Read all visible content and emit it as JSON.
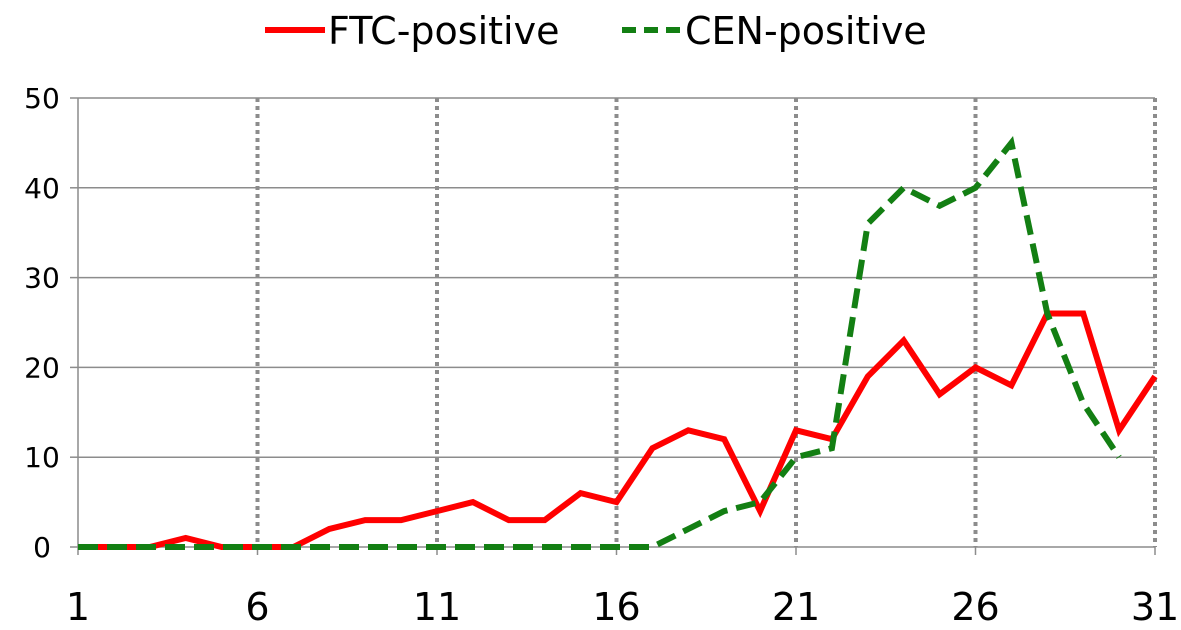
{
  "chart_data": {
    "type": "line",
    "x": [
      1,
      2,
      3,
      4,
      5,
      6,
      7,
      8,
      9,
      10,
      11,
      12,
      13,
      14,
      15,
      16,
      17,
      18,
      19,
      20,
      21,
      22,
      23,
      24,
      25,
      26,
      27,
      28,
      29,
      30,
      31
    ],
    "series": [
      {
        "name": "FTC-positive",
        "color": "#ff0000",
        "dash": "solid",
        "values": [
          0,
          0,
          0,
          1,
          0,
          0,
          0,
          2,
          3,
          3,
          4,
          5,
          3,
          3,
          6,
          5,
          11,
          13,
          12,
          4,
          13,
          12,
          19,
          23,
          17,
          20,
          18,
          26,
          26,
          13,
          19
        ]
      },
      {
        "name": "CEN-positive",
        "color": "#137f13",
        "dash": "dashed",
        "values": [
          0,
          0,
          0,
          0,
          0,
          0,
          0,
          0,
          0,
          0,
          0,
          0,
          0,
          0,
          0,
          0,
          0,
          2,
          4,
          5,
          10,
          11,
          36,
          40,
          38,
          40,
          45,
          26,
          16,
          10,
          null
        ]
      }
    ],
    "x_ticks": [
      1,
      6,
      11,
      16,
      21,
      26,
      31
    ],
    "y_ticks": [
      0,
      10,
      20,
      30,
      40,
      50
    ],
    "ylim": [
      0,
      50
    ],
    "xlim": [
      1,
      31
    ],
    "grid": {
      "horizontal": "solid",
      "vertical": "dotted-at-x-ticks"
    },
    "legend": "top-center"
  }
}
